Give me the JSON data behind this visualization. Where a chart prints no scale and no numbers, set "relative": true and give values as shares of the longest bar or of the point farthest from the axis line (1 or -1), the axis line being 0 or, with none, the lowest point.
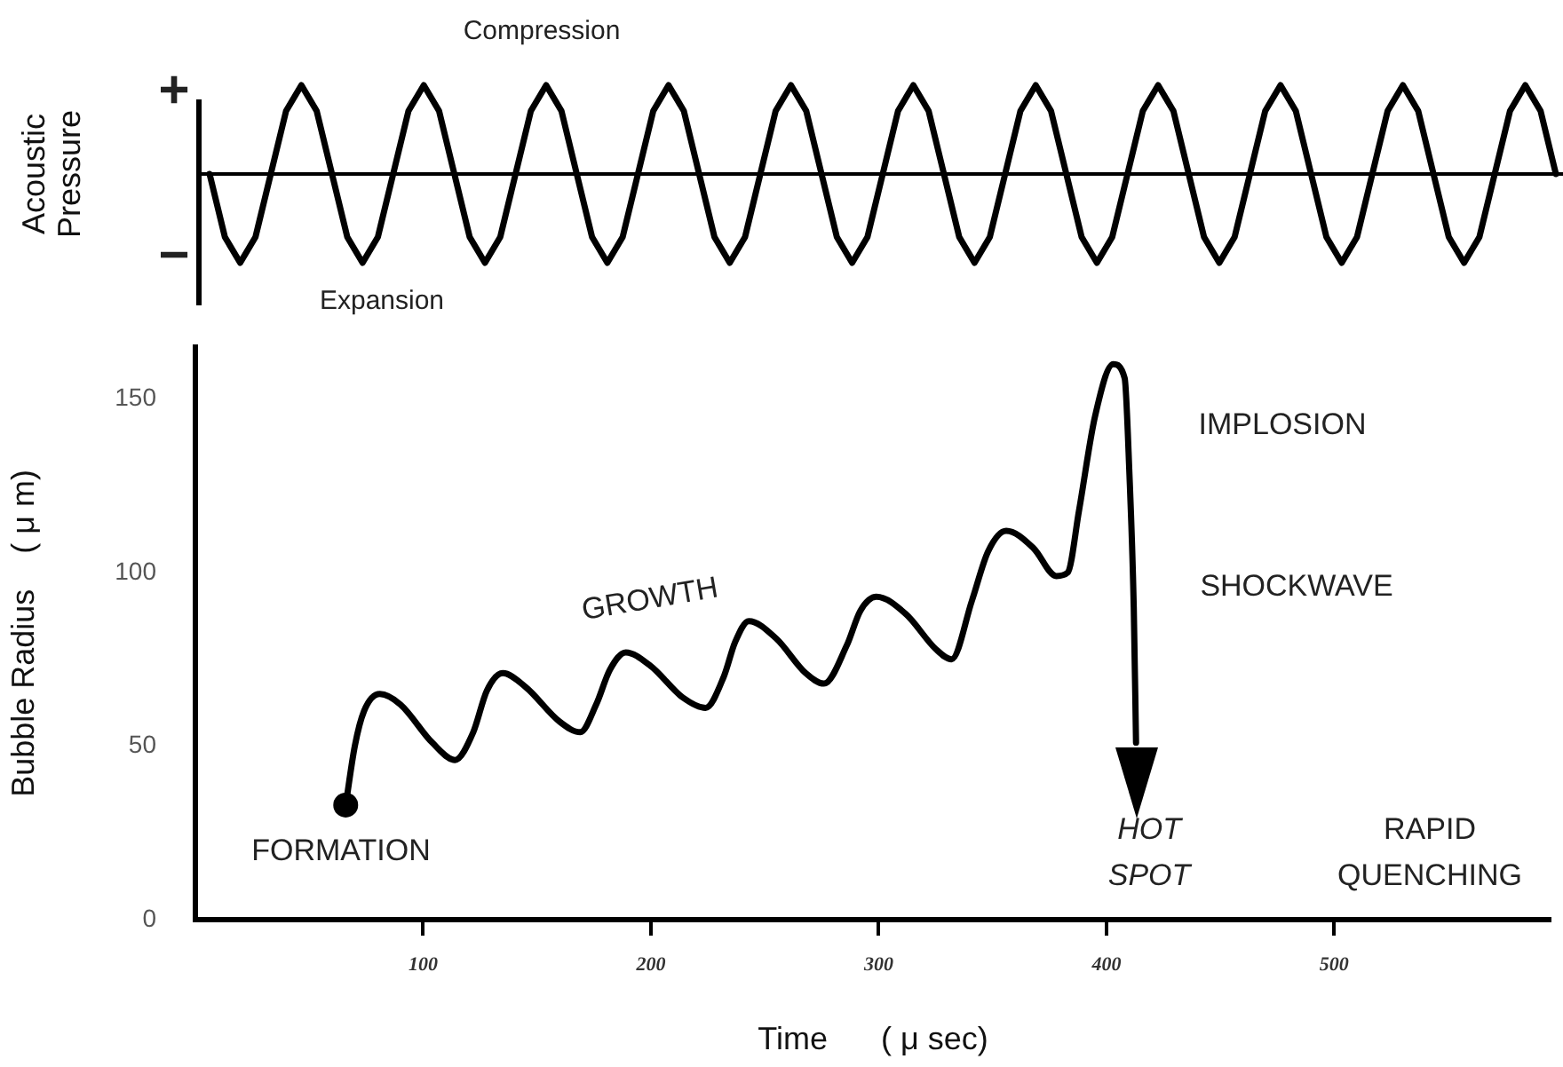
{
  "chart_data": [
    {
      "type": "line",
      "ylabel": "Acoustic\nPressure",
      "relative": true,
      "grid": false,
      "legend": false,
      "marker": "none",
      "annotations": [
        "Compression",
        "Expansion",
        "+",
        "−"
      ],
      "categories": [
        null,
        null,
        null,
        null,
        null,
        null,
        null,
        null,
        null,
        null,
        null,
        null,
        null,
        null,
        null,
        null,
        null,
        null,
        null,
        null,
        null,
        null,
        null,
        null,
        null,
        null,
        null,
        null,
        null,
        null,
        null,
        null,
        null,
        null,
        null,
        null,
        null,
        null,
        null,
        null,
        null,
        null,
        null,
        null,
        null,
        null,
        null,
        null,
        null,
        null,
        null,
        null,
        null,
        null,
        null,
        null,
        null,
        null,
        null,
        null,
        null,
        null,
        null,
        null,
        null,
        null,
        null,
        null,
        null,
        null,
        null,
        null,
        null,
        null,
        null,
        null,
        null,
        null,
        null,
        null,
        null,
        null,
        null,
        null,
        null,
        null,
        null,
        null,
        null
      ],
      "series": [
        {
          "color": "#000000",
          "values": [
            0,
            -0.71,
            -1,
            -0.71,
            0,
            0.71,
            1,
            0.71,
            0,
            -0.71,
            -1,
            -0.71,
            0,
            0.71,
            1,
            0.71,
            0,
            -0.71,
            -1,
            -0.71,
            0,
            0.71,
            1,
            0.71,
            0,
            -0.71,
            -1,
            -0.71,
            0,
            0.71,
            1,
            0.71,
            0,
            -0.71,
            -1,
            -0.71,
            0,
            0.71,
            1,
            0.71,
            0,
            -0.71,
            -1,
            -0.71,
            0,
            0.71,
            1,
            0.71,
            0,
            -0.71,
            -1,
            -0.71,
            0,
            0.71,
            1,
            0.71,
            0,
            -0.71,
            -1,
            -0.71,
            0,
            0.71,
            1,
            0.71,
            0,
            -0.71,
            -1,
            -0.71,
            0,
            0.71,
            1,
            0.71,
            0,
            -0.71,
            -1,
            -0.71,
            0,
            0.71,
            1,
            0.71,
            0,
            -0.71,
            -1,
            -0.71,
            0,
            0.71,
            1,
            0.71,
            0
          ]
        }
      ]
    },
    {
      "type": "line",
      "xlabel": "Time      ( μ sec)",
      "ylabel": "Bubble Radius    ( μ m)",
      "grid": false,
      "legend": false,
      "marker": "none",
      "xlim": [
        0,
        595
      ],
      "xticks": [
        100,
        200,
        300,
        400,
        500
      ],
      "ylim": [
        0,
        165
      ],
      "yticks": [
        0,
        50,
        100,
        150
      ],
      "annotations": [
        "FORMATION",
        "GROWTH",
        "IMPLOSION",
        "SHOCKWAVE",
        "HOT\nSPOT",
        "RAPID\nQUENCHING"
      ],
      "series": [
        {
          "color": "#000000",
          "x": [
            66,
            70,
            74,
            81,
            90,
            104,
            114,
            122,
            128,
            135,
            145,
            160,
            169,
            176,
            182,
            189,
            200,
            214,
            224,
            232,
            237,
            243,
            255,
            268,
            276,
            286,
            292,
            299,
            312,
            325,
            332,
            341,
            348,
            356,
            368,
            378,
            383,
            388,
            395,
            403,
            408,
            410,
            412,
            413
          ],
          "values": [
            33,
            50,
            60,
            65,
            62,
            51,
            46,
            54,
            66,
            71,
            67,
            57,
            54,
            62,
            72,
            77,
            73,
            64,
            61,
            70,
            80,
            86,
            81,
            71,
            68,
            79,
            89,
            93,
            88,
            78,
            75,
            92,
            106,
            112,
            107,
            99,
            100,
            118,
            145,
            160,
            156,
            130,
            90,
            51
          ]
        },
        {
          "type": "scatter",
          "color": "#000000",
          "marker": "circle",
          "x": [
            66
          ],
          "values": [
            33
          ]
        }
      ]
    }
  ]
}
